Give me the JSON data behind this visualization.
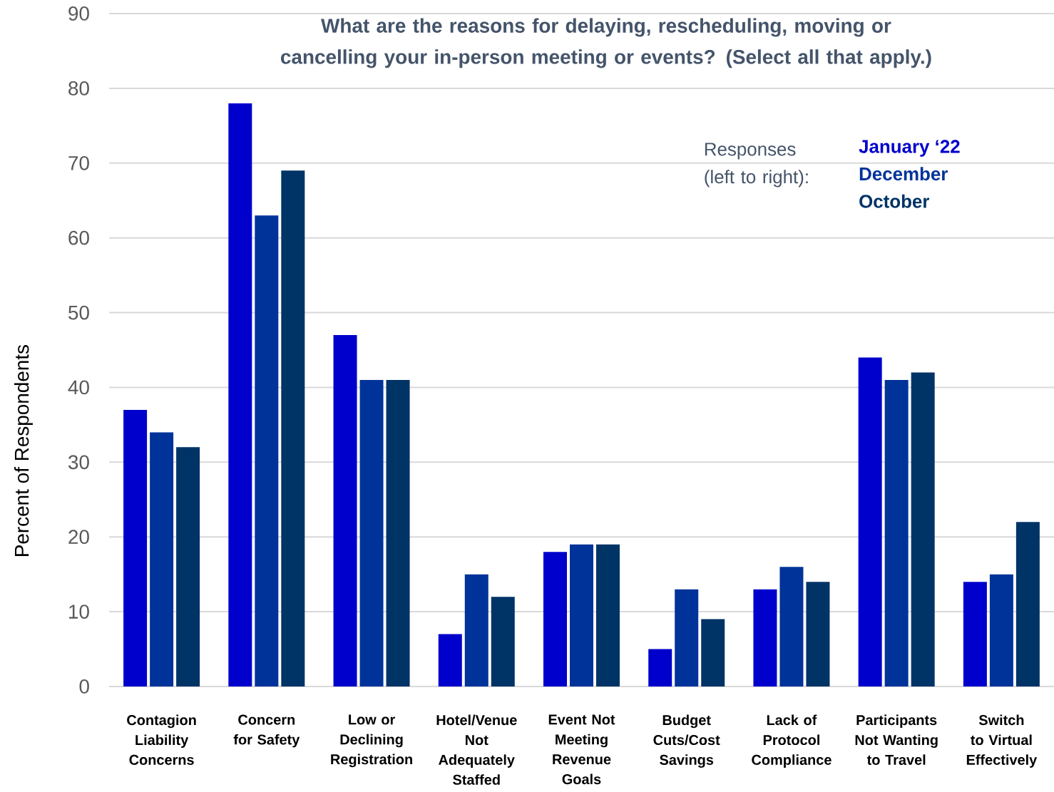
{
  "chart_data": {
    "type": "bar",
    "title": "What are the reasons for delaying, rescheduling, moving or cancelling your in-person meeting or events? (Select all that apply.)",
    "ylabel": "Percent of Respondents",
    "legend_title": "Responses (left to right):",
    "categories": [
      "Contagion Liability Concerns",
      "Concern for Safety",
      "Low or Declining Registration",
      "Hotel/Venue Not Adequately Staffed",
      "Event Not Meeting Revenue Goals",
      "Budget Cuts/Cost Savings",
      "Lack of Protocol Compliance",
      "Participants Not Wanting to Travel",
      "Switch to Virtual Effectively"
    ],
    "series": [
      {
        "name": "January ‘22",
        "color": "#0000CC",
        "values": [
          37,
          78,
          47,
          7,
          18,
          5,
          13,
          44,
          14
        ]
      },
      {
        "name": "December",
        "color": "#003399",
        "values": [
          34,
          63,
          41,
          15,
          19,
          13,
          16,
          41,
          15
        ]
      },
      {
        "name": "October",
        "color": "#003366",
        "values": [
          32,
          69,
          41,
          12,
          19,
          9,
          14,
          42,
          22
        ]
      }
    ],
    "ylim": [
      0,
      90
    ],
    "yticks": [
      0,
      10,
      20,
      30,
      40,
      50,
      60,
      70,
      80,
      90
    ],
    "grid": "y",
    "legend": "top right"
  }
}
